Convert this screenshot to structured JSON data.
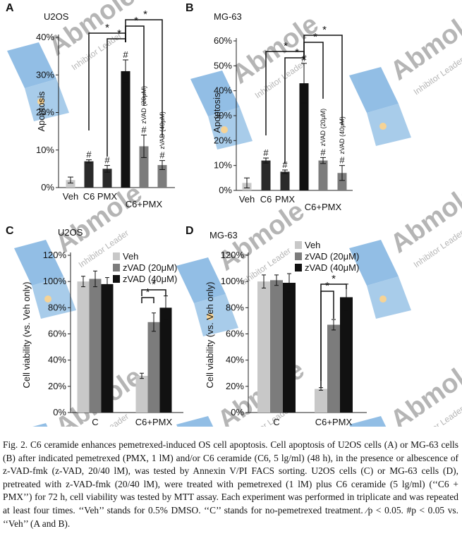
{
  "colors": {
    "veh": "#c8c8c8",
    "dark": "#2a2a2a",
    "mid": "#7c7c7c",
    "black": "#111111",
    "watermark_blue": "#3a8ad0",
    "watermark_gray": "#7a7a7a",
    "dot": "#f0b040"
  },
  "watermark": {
    "brand": "Abmole",
    "tagline": "Inhibitor Leader"
  },
  "chart_data": [
    {
      "panel": "A",
      "type": "bar",
      "title": "U2OS",
      "ylabel": "Apoptosis",
      "ylim": [
        0,
        40
      ],
      "yticks": [
        "0%",
        "10%",
        "20%",
        "30%",
        "40%"
      ],
      "bars": [
        {
          "label": "Veh",
          "value": 2,
          "err": 0.8,
          "color": "veh",
          "mark": ""
        },
        {
          "label": "C6",
          "value": 7,
          "err": 0.4,
          "color": "dark",
          "mark": "#"
        },
        {
          "label": "PMX",
          "value": 5,
          "err": 0.9,
          "color": "dark",
          "mark": "#"
        },
        {
          "label": "",
          "value": 31,
          "err": 3,
          "color": "black",
          "mark": "#"
        },
        {
          "label": "zVAD (20μM)",
          "value": 11,
          "err": 3,
          "color": "mid",
          "mark": "#"
        },
        {
          "label": "zVAD (40μM)",
          "value": 6,
          "err": 1.2,
          "color": "mid",
          "mark": "#"
        }
      ],
      "x_labels": [
        "Veh",
        "C6",
        "PMX"
      ],
      "group_label": "C6+PMX",
      "sig": "*"
    },
    {
      "panel": "B",
      "type": "bar",
      "title": "MG-63",
      "ylabel": "Apoptosis",
      "ylim": [
        0,
        60
      ],
      "yticks": [
        "0%",
        "10%",
        "20%",
        "30%",
        "40%",
        "50%",
        "60%"
      ],
      "bars": [
        {
          "label": "Veh",
          "value": 3,
          "err": 2,
          "color": "veh",
          "mark": ""
        },
        {
          "label": "C6",
          "value": 12,
          "err": 1,
          "color": "dark",
          "mark": "#"
        },
        {
          "label": "PMX",
          "value": 7.5,
          "err": 0.7,
          "color": "dark",
          "mark": "#"
        },
        {
          "label": "",
          "value": 43,
          "err": 8,
          "color": "black",
          "mark": "#"
        },
        {
          "label": "zVAD (20μM)",
          "value": 12,
          "err": 1.2,
          "color": "mid",
          "mark": "#"
        },
        {
          "label": "zVAD (40μM)",
          "value": 7,
          "err": 3,
          "color": "mid",
          "mark": "#"
        }
      ],
      "x_labels": [
        "Veh",
        "C6",
        "PMX"
      ],
      "group_label": "C6+PMX",
      "sig": "*"
    },
    {
      "panel": "C",
      "type": "bar",
      "title": "U2OS",
      "ylabel": "Cell viability (vs. Veh only)",
      "ylim": [
        0,
        120
      ],
      "yticks": [
        "0%",
        "20%",
        "40%",
        "60%",
        "80%",
        "100%",
        "120%"
      ],
      "categories": [
        "C",
        "C6+PMX"
      ],
      "series": [
        {
          "name": "Veh",
          "color": "veh",
          "values": [
            100,
            28
          ],
          "err": [
            4,
            2
          ]
        },
        {
          "name": "zVAD (20μM)",
          "color": "mid",
          "values": [
            102,
            69
          ],
          "err": [
            6,
            7
          ]
        },
        {
          "name": "zVAD (40μM)",
          "color": "black",
          "values": [
            98,
            80
          ],
          "err": [
            5,
            9
          ]
        }
      ],
      "sig": "*"
    },
    {
      "panel": "D",
      "type": "bar",
      "title": "MG-63",
      "ylabel": "Cell viability (vs. Veh only)",
      "ylim": [
        0,
        120
      ],
      "yticks": [
        "0%",
        "20%",
        "40%",
        "60%",
        "80%",
        "100%",
        "120%"
      ],
      "categories": [
        "C",
        "C6+PMX"
      ],
      "series": [
        {
          "name": "Veh",
          "color": "veh",
          "values": [
            100,
            18
          ],
          "err": [
            5,
            1
          ]
        },
        {
          "name": "zVAD (20μM)",
          "color": "mid",
          "values": [
            101,
            67
          ],
          "err": [
            4,
            4
          ]
        },
        {
          "name": "zVAD (40μM)",
          "color": "black",
          "values": [
            99,
            88
          ],
          "err": [
            7,
            10
          ]
        }
      ],
      "sig": "*"
    }
  ],
  "caption": "Fig. 2. C6 ceramide enhances pemetrexed-induced OS cell apoptosis. Cell apoptosis of U2OS cells (A) or MG-63 cells (B) after indicated pemetrexed (PMX, 1 lM) and/or C6 ceramide (C6, 5 lg/ml) (48 h), in the presence or albescence of z-VAD-fmk (z-VAD, 20/40 lM), was tested by Annexin V/PI FACS sorting. U2OS cells (C) or MG-63 cells (D), pretreated with z-VAD-fmk (20/40 lM), were treated with pemetrexed (1 lM) plus C6 ceramide (5 lg/ml) (‘‘C6 + PMX’’) for 72 h, cell viability was tested by MTT assay. Each experiment was performed in triplicate and was repeated at least four times. ‘‘Veh’’ stands for 0.5% DMSO. ‘‘C’’ stands for no-pemetrexed treatment. ⁄p < 0.05. #p < 0.05 vs. ‘‘Veh’’ (A and B)."
}
